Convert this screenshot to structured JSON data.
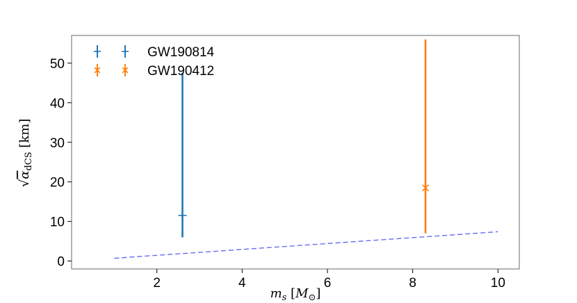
{
  "chart_data": {
    "type": "scatter",
    "xlabel": "m_s [M_⊙]",
    "ylabel": "√α_dCS [km]",
    "xlim": [
      0.0,
      10.5
    ],
    "ylim": [
      -2,
      57
    ],
    "xticks": [
      2,
      4,
      6,
      8,
      10
    ],
    "yticks": [
      0,
      10,
      20,
      30,
      40,
      50
    ],
    "grid": false,
    "legend_position": "top-left",
    "series": [
      {
        "name": "GW190814",
        "color": "#1f77b4",
        "marker": "+",
        "x": 2.6,
        "y": 11.5,
        "y_low": 6,
        "y_high": 47.5
      },
      {
        "name": "GW190412",
        "color": "#ff7f0e",
        "marker": "x",
        "x": 8.3,
        "y": 18.5,
        "y_low": 7,
        "y_high": 56
      }
    ],
    "reference_line": {
      "color": "#6a6af5",
      "style": "dashed",
      "x": [
        1,
        10
      ],
      "y": [
        0.7,
        7.4
      ]
    }
  }
}
